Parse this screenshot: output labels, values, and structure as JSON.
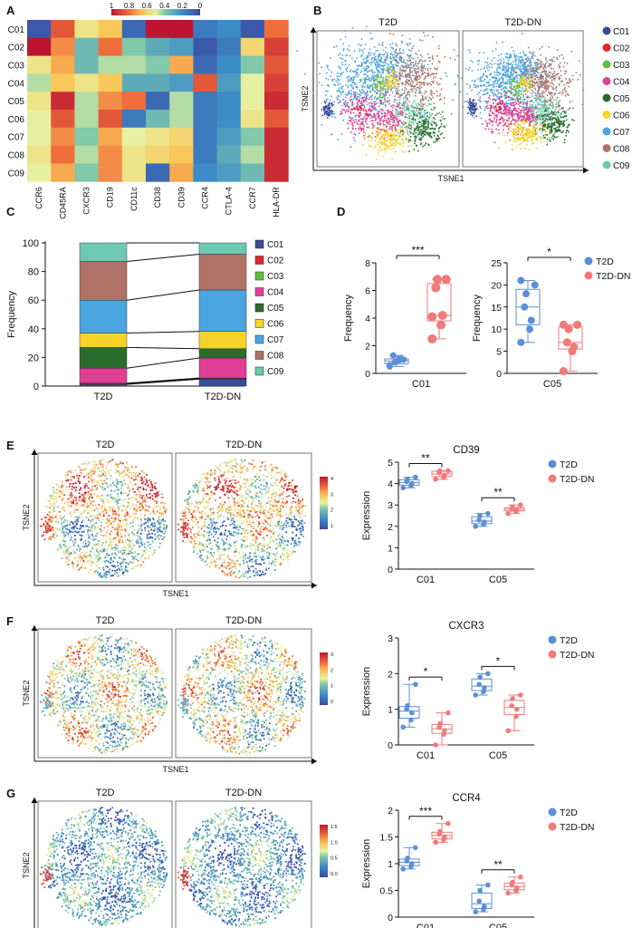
{
  "panel_letters": [
    "A",
    "B",
    "C",
    "D",
    "E",
    "F",
    "G"
  ],
  "colors": {
    "C01": "#3a4b9c",
    "C02": "#e2262b",
    "C03": "#5fbf3f",
    "C04": "#e03f96",
    "C05": "#2a6b2e",
    "C06": "#f5d328",
    "C07": "#4aa5e0",
    "C08": "#b07266",
    "C09": "#6ec9b2",
    "t2d": "#5b8fd6",
    "t2ddn": "#f07a7a"
  },
  "legend_clusters": [
    "C01",
    "C02",
    "C03",
    "C04",
    "C05",
    "C06",
    "C07",
    "C08",
    "C09"
  ],
  "groups": {
    "t2d": "T2D",
    "t2ddn": "T2D-DN"
  },
  "tsne": {
    "xlabel": "TSNE1",
    "ylabel": "TSNE2"
  },
  "colorbar_a": {
    "ticks": [
      "1",
      "0.8",
      "0.6",
      "0.4",
      "0.2",
      "0"
    ]
  },
  "colorbar_e": {
    "ticks": [
      "4",
      "3",
      "2",
      "1"
    ]
  },
  "colorbar_f": {
    "ticks": [
      "3",
      "2",
      "1",
      "0"
    ]
  },
  "colorbar_g": {
    "ticks": [
      "1.5",
      "1.0",
      "0.5",
      "0.0"
    ]
  },
  "chart_data": [
    {
      "panel": "A",
      "type": "heatmap",
      "rows": [
        "C01",
        "C02",
        "C03",
        "C04",
        "C05",
        "C06",
        "C07",
        "C08",
        "C09"
      ],
      "columns": [
        "CCR6",
        "CD45RA",
        "CXCR3",
        "CD19",
        "CD11c",
        "CD38",
        "CD39",
        "CCR4",
        "CTLA-4",
        "CCR7",
        "HLA-DR"
      ],
      "values": [
        [
          0.05,
          0.85,
          0.55,
          0.65,
          0.1,
          1.0,
          1.0,
          0.15,
          0.2,
          0.05,
          0.8
        ],
        [
          1.0,
          0.75,
          0.35,
          0.8,
          0.4,
          0.3,
          0.25,
          0.05,
          0.15,
          0.6,
          0.9
        ],
        [
          0.55,
          0.7,
          0.35,
          0.45,
          0.45,
          0.4,
          0.7,
          0.1,
          0.2,
          0.4,
          0.85
        ],
        [
          0.45,
          0.65,
          0.55,
          0.65,
          0.3,
          0.3,
          0.25,
          0.85,
          0.25,
          0.5,
          0.9
        ],
        [
          0.55,
          0.95,
          0.45,
          0.75,
          0.8,
          0.1,
          0.45,
          0.15,
          0.2,
          0.5,
          0.95
        ],
        [
          0.5,
          0.85,
          0.45,
          0.85,
          0.15,
          0.35,
          0.45,
          0.15,
          0.2,
          0.55,
          0.85
        ],
        [
          0.5,
          0.75,
          0.4,
          0.7,
          0.5,
          0.55,
          0.6,
          0.15,
          0.25,
          0.4,
          0.95
        ],
        [
          0.55,
          0.8,
          0.45,
          0.75,
          0.55,
          0.6,
          0.65,
          0.15,
          0.3,
          0.45,
          0.95
        ],
        [
          0.5,
          0.7,
          0.4,
          0.75,
          0.55,
          0.1,
          0.7,
          0.2,
          0.25,
          0.35,
          0.95
        ]
      ],
      "scale": [
        1,
        0
      ]
    },
    {
      "panel": "C",
      "type": "bar",
      "stacked": true,
      "categories": [
        "T2D",
        "T2D-DN"
      ],
      "ylabel": "Frequency",
      "ylim": [
        0,
        100
      ],
      "yticks": [
        0,
        20,
        40,
        60,
        80,
        100
      ],
      "series": [
        {
          "name": "C01",
          "values": [
            1.2,
            4.8
          ]
        },
        {
          "name": "C02",
          "values": [
            0.5,
            0.5
          ]
        },
        {
          "name": "C03",
          "values": [
            0.3,
            0.3
          ]
        },
        {
          "name": "C04",
          "values": [
            10.5,
            14.0
          ]
        },
        {
          "name": "C05",
          "values": [
            14.5,
            6.5
          ]
        },
        {
          "name": "C06",
          "values": [
            10.0,
            12.0
          ]
        },
        {
          "name": "C07",
          "values": [
            23.0,
            29.0
          ]
        },
        {
          "name": "C08",
          "values": [
            27.0,
            25.0
          ]
        },
        {
          "name": "C09",
          "values": [
            13.0,
            7.9
          ]
        }
      ],
      "legend": "right"
    },
    {
      "panel": "D1",
      "type": "box",
      "category": "C01",
      "ylabel": "Frequency",
      "ylim": [
        0,
        8
      ],
      "yticks": [
        0,
        2,
        4,
        6,
        8
      ],
      "significance": "***",
      "groups": [
        {
          "name": "T2D",
          "points": [
            0.6,
            0.9,
            1.1,
            1.3,
            0.8,
            1.0,
            0.5
          ]
        },
        {
          "name": "T2D-DN",
          "points": [
            2.5,
            3.5,
            4.2,
            6.2,
            6.8,
            6.8,
            4.1
          ]
        }
      ]
    },
    {
      "panel": "D2",
      "type": "box",
      "category": "C05",
      "ylabel": "Frequency",
      "ylim": [
        0,
        25
      ],
      "yticks": [
        0,
        5,
        10,
        15,
        20,
        25
      ],
      "significance": "*",
      "groups": [
        {
          "name": "T2D",
          "points": [
            7,
            10,
            12,
            15,
            18,
            20,
            21
          ]
        },
        {
          "name": "T2D-DN",
          "points": [
            0.5,
            5,
            6,
            7,
            10,
            11,
            11
          ]
        }
      ]
    },
    {
      "panel": "E",
      "type": "box",
      "title": "CD39",
      "ylabel": "Expression",
      "ylim": [
        0,
        5
      ],
      "yticks": [
        0,
        1,
        2,
        3,
        4,
        5
      ],
      "categories": [
        "C01",
        "C05"
      ],
      "significance": [
        "**",
        "**"
      ],
      "groups": [
        {
          "name": "T2D",
          "points": [
            [
              3.8,
              3.9,
              4.0,
              4.1,
              4.2,
              4.3
            ],
            [
              2.0,
              2.1,
              2.2,
              2.3,
              2.5,
              2.6
            ]
          ]
        },
        {
          "name": "T2D-DN",
          "points": [
            [
              4.2,
              4.3,
              4.4,
              4.5,
              4.6,
              4.6
            ],
            [
              2.6,
              2.7,
              2.8,
              2.8,
              2.9,
              3.0
            ]
          ]
        }
      ]
    },
    {
      "panel": "F",
      "type": "box",
      "title": "CXCR3",
      "ylabel": "Expression",
      "ylim": [
        0,
        3
      ],
      "yticks": [
        0,
        1,
        2,
        3
      ],
      "categories": [
        "C01",
        "C05"
      ],
      "significance": [
        "*",
        "*"
      ],
      "groups": [
        {
          "name": "T2D",
          "points": [
            [
              0.5,
              0.7,
              0.9,
              1.0,
              1.1,
              1.7
            ],
            [
              1.4,
              1.5,
              1.6,
              1.7,
              1.9,
              2.0
            ]
          ]
        },
        {
          "name": "T2D-DN",
          "points": [
            [
              0.0,
              0.3,
              0.4,
              0.5,
              0.6,
              0.9
            ],
            [
              0.4,
              0.8,
              1.0,
              1.1,
              1.3,
              1.4
            ]
          ]
        }
      ]
    },
    {
      "panel": "G",
      "type": "box",
      "title": "CCR4",
      "ylabel": "Expression",
      "ylim": [
        0,
        2
      ],
      "yticks": [
        0,
        0.5,
        1,
        1.5,
        2
      ],
      "ytick_labels": [
        "0",
        "0.5",
        "1",
        "1.5",
        "2"
      ],
      "categories": [
        "C01",
        "C05"
      ],
      "significance": [
        "***",
        "**"
      ],
      "groups": [
        {
          "name": "T2D",
          "points": [
            [
              0.9,
              0.95,
              1.0,
              1.05,
              1.1,
              1.3
            ],
            [
              0.1,
              0.15,
              0.2,
              0.3,
              0.5,
              0.6
            ]
          ]
        },
        {
          "name": "T2D-DN",
          "points": [
            [
              1.4,
              1.45,
              1.5,
              1.55,
              1.6,
              1.75
            ],
            [
              0.45,
              0.5,
              0.55,
              0.6,
              0.65,
              0.75
            ]
          ]
        }
      ]
    }
  ]
}
